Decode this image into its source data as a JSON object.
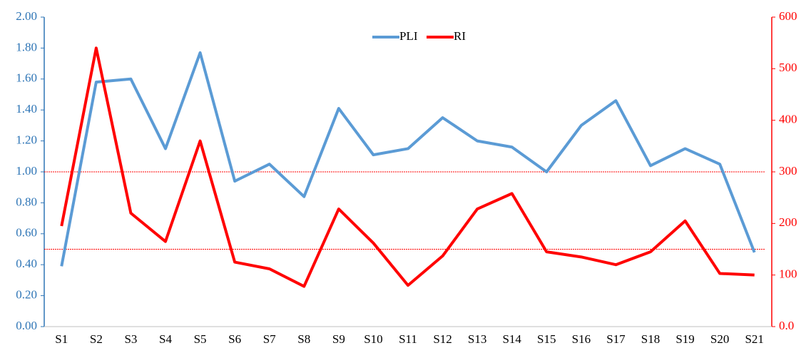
{
  "chart_data": {
    "type": "line",
    "categories": [
      "S1",
      "S2",
      "S3",
      "S4",
      "S5",
      "S6",
      "S7",
      "S8",
      "S9",
      "S10",
      "S11",
      "S12",
      "S13",
      "S14",
      "S15",
      "S16",
      "S17",
      "S18",
      "S19",
      "S20",
      "S21"
    ],
    "series": [
      {
        "name": "PLI",
        "color": "#5b9bd5",
        "axis": "y",
        "values": [
          0.39,
          1.58,
          1.6,
          1.15,
          1.77,
          0.94,
          1.05,
          0.84,
          1.41,
          1.11,
          1.15,
          1.35,
          1.2,
          1.16,
          1.0,
          1.3,
          1.46,
          1.04,
          1.15,
          1.05,
          0.48
        ]
      },
      {
        "name": "RI",
        "color": "#ff0000",
        "axis": "y2",
        "values": [
          195,
          540,
          220,
          165,
          360,
          125,
          112,
          78,
          228,
          162,
          80,
          137,
          228,
          258,
          145,
          135,
          120,
          145,
          205,
          103,
          100
        ]
      }
    ],
    "ylim": [
      0,
      2
    ],
    "yticks": [
      {
        "value": 0,
        "label": "0.00"
      },
      {
        "value": 0.2,
        "label": "0.20"
      },
      {
        "value": 0.4,
        "label": "0.40"
      },
      {
        "value": 0.6,
        "label": "0.60"
      },
      {
        "value": 0.8,
        "label": "0.80"
      },
      {
        "value": 1,
        "label": "1.00"
      },
      {
        "value": 1.2,
        "label": "1.20"
      },
      {
        "value": 1.4,
        "label": "1.40"
      },
      {
        "value": 1.6,
        "label": "1.60"
      },
      {
        "value": 1.8,
        "label": "1.80"
      },
      {
        "value": 2,
        "label": "2.00"
      }
    ],
    "y_color": "#2e75b6",
    "y2lim": [
      0,
      600
    ],
    "y2ticks": [
      {
        "value": 0,
        "label": "0.0"
      },
      100,
      200,
      300,
      400,
      500,
      600
    ],
    "y2_color": "#ff0000",
    "reference_lines": [
      {
        "axis": "y",
        "value": 1,
        "color": "#5b9bd5"
      },
      {
        "axis": "y2",
        "value": 300,
        "color": "#ff0000"
      },
      {
        "axis": "y2",
        "value": 150,
        "color": "#ff0000"
      }
    ],
    "legend": "top"
  }
}
